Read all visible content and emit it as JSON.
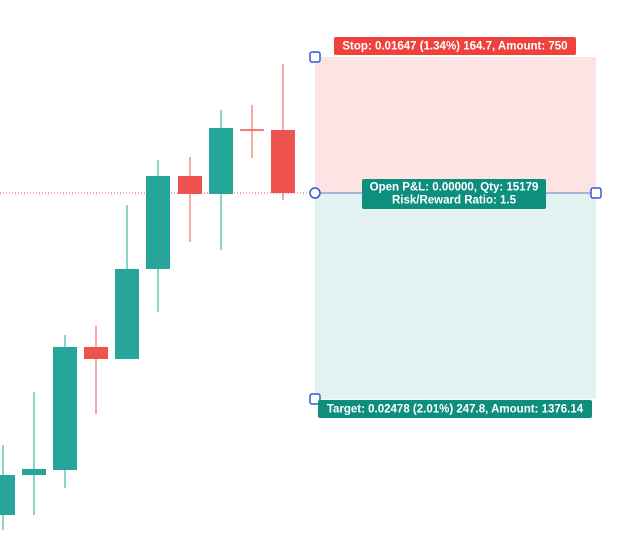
{
  "position_tool": {
    "stop_label": "Stop: 0.01647 (1.34%) 164.7, Amount: 750",
    "pnl_label": [
      "Open P&L: 0.00000, Qty: 15179",
      "Risk/Reward Ratio: 1.5"
    ],
    "target_label": "Target: 0.02478 (2.01%) 247.8, Amount: 1376.14"
  }
}
